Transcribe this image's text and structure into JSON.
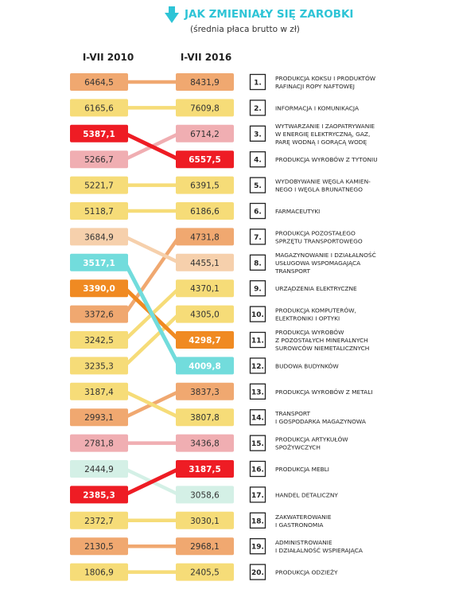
{
  "header": {
    "title": "JAK ZMIENIAŁY SIĘ ZAROBKI",
    "subtitle": "(średnia płaca brutto w zł)",
    "accent_color": "#2ec4d6"
  },
  "chart_data": {
    "type": "slope",
    "title": "JAK ZMIENIAŁY SIĘ ZAROBKI",
    "subtitle": "(średnia płaca brutto w zł)",
    "columns": [
      "I-VII 2010",
      "I-VII 2016"
    ],
    "series": [
      {
        "rank": "1.",
        "name": "PRODUKCJA KOKSU I PRODUKTÓW\nRAFINACJI ROPY NAFTOWEJ",
        "v2010": "6464,5",
        "v2016": "8431,9",
        "rank2010": 1,
        "color": "#f0a870",
        "highlight": false
      },
      {
        "rank": "2.",
        "name": "INFORMACJA I KOMUNIKACJA",
        "v2010": "6165,6",
        "v2016": "7609,8",
        "rank2010": 2,
        "color": "#f6dc78",
        "highlight": false
      },
      {
        "rank": "3.",
        "name": "WYTWARZANIE I ZAOPATRYWANIE\nW ENERGIĘ ELEKTRYCZNĄ, GAZ,\nPARĘ WODNĄ I GORĄCĄ WODĘ",
        "v2010": "5266,7",
        "v2016": "6714,2",
        "rank2010": 4,
        "color": "#f0aeb2",
        "highlight": false
      },
      {
        "rank": "4.",
        "name": "PRODUKCJA WYROBÓW Z TYTONIU",
        "v2010": "5387,1",
        "v2016": "6557,5",
        "rank2010": 3,
        "color": "#ee1c24",
        "highlight": true
      },
      {
        "rank": "5.",
        "name": "WYDOBYWANIE WĘGLA KAMIEN-\nNEGO I WĘGLA BRUNATNEGO",
        "v2010": "5221,7",
        "v2016": "6391,5",
        "rank2010": 5,
        "color": "#f6dc78",
        "highlight": false
      },
      {
        "rank": "6.",
        "name": "FARMACEUTYKI",
        "v2010": "5118,7",
        "v2016": "6186,6",
        "rank2010": 6,
        "color": "#f6dc78",
        "highlight": false
      },
      {
        "rank": "7.",
        "name": "PRODUKCJA POZOSTAŁEGO\nSPRZĘTU TRANSPORTOWEGO",
        "v2010": "3372,6",
        "v2016": "4731,8",
        "rank2010": 10,
        "color": "#f0a870",
        "highlight": false
      },
      {
        "rank": "8.",
        "name": "MAGAZYNOWANIE I DZIAŁALNOŚĆ\nUSŁUGOWA WSPOMAGAJĄCA\nTRANSPORT",
        "v2010": "3684,9",
        "v2016": "4455,1",
        "rank2010": 7,
        "color": "#f6d0ac",
        "highlight": false
      },
      {
        "rank": "9.",
        "name": "URZĄDZENIA ELEKTRYCZNE",
        "v2010": "3242,5",
        "v2016": "4370,1",
        "rank2010": 11,
        "color": "#f6dc78",
        "highlight": false
      },
      {
        "rank": "10.",
        "name": "PRODUKCJA KOMPUTERÓW,\nELEKTRONIKI I OPTYKI",
        "v2010": "3235,3",
        "v2016": "4305,0",
        "rank2010": 12,
        "color": "#f6dc78",
        "highlight": false
      },
      {
        "rank": "11.",
        "name": "PRODUKCJA WYROBÓW\nZ POZOSTAŁYCH MINERALNYCH\nSUROWCÓW NIEMETALICZNYCH",
        "v2010": "3390,0",
        "v2016": "4298,7",
        "rank2010": 9,
        "color": "#f08a22",
        "highlight": true
      },
      {
        "rank": "12.",
        "name": "BUDOWA BUDYNKÓW",
        "v2010": "3517,1",
        "v2016": "4009,8",
        "rank2010": 8,
        "color": "#72dcdc",
        "highlight": true
      },
      {
        "rank": "13.",
        "name": "PRODUKCJA WYROBÓW Z METALI",
        "v2010": "2993,1",
        "v2016": "3837,3",
        "rank2010": 14,
        "color": "#f0a870",
        "highlight": false
      },
      {
        "rank": "14.",
        "name": "TRANSPORT\nI GOSPODARKA MAGAZYNOWA",
        "v2010": "3187,4",
        "v2016": "3807,8",
        "rank2010": 13,
        "color": "#f6dc78",
        "highlight": false
      },
      {
        "rank": "15.",
        "name": "PRODUKCJA ARTYKUŁÓW\nSPOŻYWCZYCH",
        "v2010": "2781,8",
        "v2016": "3436,8",
        "rank2010": 15,
        "color": "#f0aeb2",
        "highlight": false
      },
      {
        "rank": "16.",
        "name": "PRODUKCJA MEBLI",
        "v2010": "2385,3",
        "v2016": "3187,5",
        "rank2010": 17,
        "color": "#ee1c24",
        "highlight": true
      },
      {
        "rank": "17.",
        "name": "HANDEL DETALICZNY",
        "v2010": "2444,9",
        "v2016": "3058,6",
        "rank2010": 16,
        "color": "#d4f0e6",
        "highlight": false
      },
      {
        "rank": "18.",
        "name": "ZAKWATEROWANIE\nI GASTRONOMIA",
        "v2010": "2372,7",
        "v2016": "3030,1",
        "rank2010": 18,
        "color": "#f6dc78",
        "highlight": false
      },
      {
        "rank": "19.",
        "name": "ADMINISTROWANIE\nI DZIAŁALNOŚĆ WSPIERAJĄCA",
        "v2010": "2130,5",
        "v2016": "2968,1",
        "rank2010": 19,
        "color": "#f0a870",
        "highlight": false
      },
      {
        "rank": "20.",
        "name": "PRODUKCJA ODZIEŻY",
        "v2010": "1806,9",
        "v2016": "2405,5",
        "rank2010": 20,
        "color": "#f6dc78",
        "highlight": false
      }
    ]
  }
}
